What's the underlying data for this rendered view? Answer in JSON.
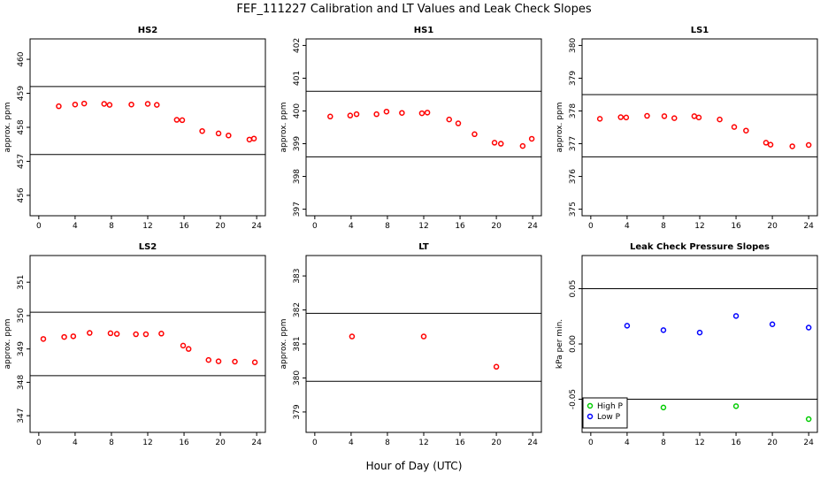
{
  "title": "FEF_111227  Calibration and LT Values and Leak Check Slopes",
  "xlabel": "Hour of Day (UTC)",
  "colors": {
    "cal": "#ff0000",
    "high_p": "#00cc00",
    "low_p": "#0000ff"
  },
  "chart_data": [
    {
      "type": "scatter",
      "title": "HS2",
      "xlabel": "",
      "ylabel": "approx. ppm",
      "xlim": [
        0,
        24
      ],
      "ylim": [
        455.4,
        460.6
      ],
      "xticks": [
        "0",
        "4",
        "8",
        "12",
        "16",
        "20",
        "24"
      ],
      "yticks": [
        "456",
        "457",
        "458",
        "459",
        "460"
      ],
      "hlines": [
        459.2,
        457.2
      ],
      "series": [
        {
          "color": "#ff0000",
          "marker": "circle",
          "x": [
            2.2,
            4.0,
            5.0,
            7.2,
            7.8,
            10.2,
            12.0,
            13.0,
            15.2,
            15.8,
            18.0,
            19.8,
            20.9,
            23.2,
            23.7
          ],
          "y": [
            458.62,
            458.67,
            458.7,
            458.69,
            458.66,
            458.67,
            458.69,
            458.66,
            458.22,
            458.21,
            457.89,
            457.82,
            457.76,
            457.64,
            457.67
          ]
        }
      ]
    },
    {
      "type": "scatter",
      "title": "HS1",
      "xlabel": "",
      "ylabel": "approx. ppm",
      "xlim": [
        0,
        24
      ],
      "ylim": [
        396.8,
        402.2
      ],
      "xticks": [
        "0",
        "4",
        "8",
        "12",
        "16",
        "20",
        "24"
      ],
      "yticks": [
        "397",
        "398",
        "399",
        "400",
        "401",
        "402"
      ],
      "hlines": [
        400.6,
        398.6
      ],
      "series": [
        {
          "color": "#ff0000",
          "marker": "circle",
          "x": [
            1.7,
            3.9,
            4.6,
            6.8,
            7.9,
            9.6,
            11.8,
            12.4,
            14.8,
            15.8,
            17.6,
            19.8,
            20.5,
            22.9,
            23.9
          ],
          "y": [
            399.83,
            399.86,
            399.9,
            399.9,
            399.98,
            399.94,
            399.93,
            399.95,
            399.74,
            399.62,
            399.29,
            399.03,
            399.0,
            398.93,
            399.15
          ]
        }
      ]
    },
    {
      "type": "scatter",
      "title": "LS1",
      "xlabel": "",
      "ylabel": "approx. ppm",
      "xlim": [
        0,
        24
      ],
      "ylim": [
        374.8,
        380.2
      ],
      "xticks": [
        "0",
        "4",
        "8",
        "12",
        "16",
        "20",
        "24"
      ],
      "yticks": [
        "375",
        "376",
        "377",
        "378",
        "379",
        "380"
      ],
      "hlines": [
        378.5,
        376.6
      ],
      "series": [
        {
          "color": "#ff0000",
          "marker": "circle",
          "x": [
            1.0,
            3.3,
            3.9,
            6.2,
            8.1,
            9.2,
            11.4,
            11.9,
            14.2,
            15.8,
            17.1,
            19.3,
            19.8,
            22.2,
            24.0
          ],
          "y": [
            377.76,
            377.81,
            377.8,
            377.85,
            377.84,
            377.78,
            377.84,
            377.8,
            377.74,
            377.51,
            377.4,
            377.03,
            376.97,
            376.92,
            376.96
          ]
        }
      ]
    },
    {
      "type": "scatter",
      "title": "LS2",
      "xlabel": "",
      "ylabel": "approx. ppm",
      "xlim": [
        0,
        24
      ],
      "ylim": [
        346.5,
        351.8
      ],
      "xticks": [
        "0",
        "4",
        "8",
        "12",
        "16",
        "20",
        "24"
      ],
      "yticks": [
        "347",
        "348",
        "349",
        "350",
        "351"
      ],
      "hlines": [
        350.1,
        348.2
      ],
      "series": [
        {
          "color": "#ff0000",
          "marker": "circle",
          "x": [
            0.5,
            2.8,
            3.8,
            5.6,
            7.9,
            8.6,
            10.7,
            11.8,
            13.5,
            15.9,
            16.5,
            18.7,
            19.8,
            21.6,
            23.8
          ],
          "y": [
            349.3,
            349.36,
            349.38,
            349.48,
            349.47,
            349.45,
            349.44,
            349.44,
            349.46,
            349.1,
            349.0,
            348.67,
            348.63,
            348.62,
            348.6
          ]
        }
      ]
    },
    {
      "type": "scatter",
      "title": "LT",
      "xlabel": "",
      "ylabel": "approx. ppm",
      "xlim": [
        0,
        24
      ],
      "ylim": [
        378.4,
        383.6
      ],
      "xticks": [
        "0",
        "4",
        "8",
        "12",
        "16",
        "20",
        "24"
      ],
      "yticks": [
        "379",
        "380",
        "381",
        "382",
        "383"
      ],
      "hlines": [
        381.9,
        379.9
      ],
      "series": [
        {
          "color": "#ff0000",
          "marker": "circle",
          "x": [
            4.1,
            12.0,
            20.0
          ],
          "y": [
            381.22,
            381.22,
            380.33
          ]
        }
      ]
    },
    {
      "type": "scatter",
      "title": "Leak Check Pressure Slopes",
      "xlabel": "",
      "ylabel": "kPa per min.",
      "xlim": [
        0,
        24
      ],
      "ylim": [
        -0.08,
        0.08
      ],
      "xticks": [
        "0",
        "4",
        "8",
        "12",
        "16",
        "20",
        "24"
      ],
      "yticks": [
        "-0.05",
        "0.00",
        "0.05"
      ],
      "hlines": [
        0.05,
        -0.05
      ],
      "legend": "bottom-left",
      "series": [
        {
          "name": "High P",
          "color": "#00cc00",
          "marker": "circle",
          "x": [
            8.0,
            16.0,
            24.0
          ],
          "y": [
            -0.0575,
            -0.0563,
            -0.068
          ]
        },
        {
          "name": "Low P",
          "color": "#0000ff",
          "marker": "circle",
          "x": [
            4.0,
            8.0,
            12.0,
            16.0,
            20.0,
            24.0
          ],
          "y": [
            0.0165,
            0.0125,
            0.0103,
            0.0253,
            0.0178,
            0.0148
          ]
        }
      ]
    }
  ]
}
